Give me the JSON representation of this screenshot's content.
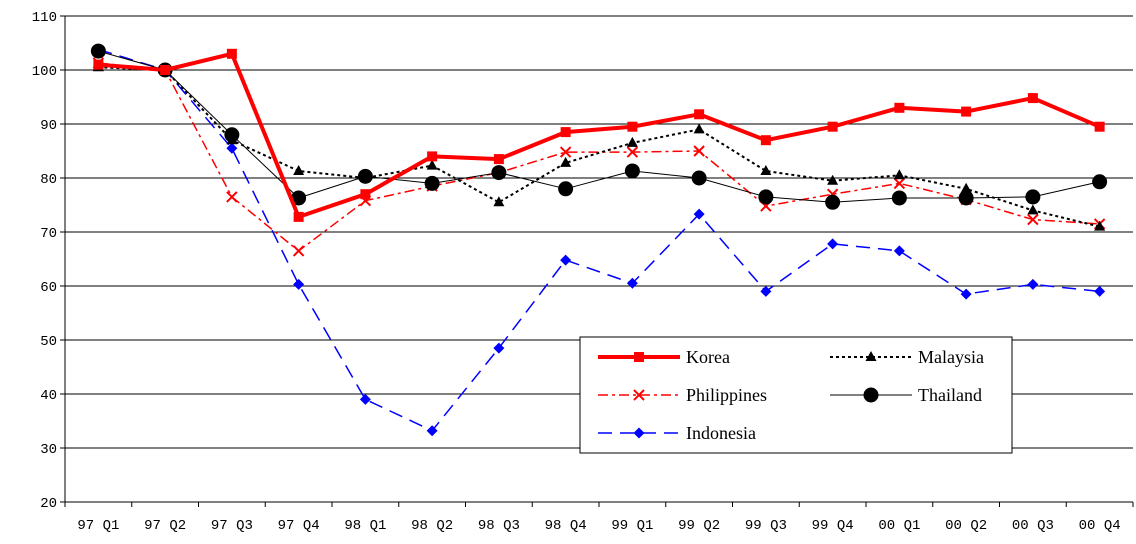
{
  "chart_data": {
    "type": "line",
    "title": "",
    "xlabel": "",
    "ylabel": "",
    "ylim": [
      20,
      110
    ],
    "yticks": [
      20,
      30,
      40,
      50,
      60,
      70,
      80,
      90,
      100,
      110
    ],
    "grid": "horizontal",
    "legend": "lower-right",
    "categories": [
      "97 Q1",
      "97 Q2",
      "97 Q3",
      "97 Q4",
      "98 Q1",
      "98 Q2",
      "98 Q3",
      "98 Q4",
      "99 Q1",
      "99 Q2",
      "99 Q3",
      "99 Q4",
      "00 Q1",
      "00 Q2",
      "00 Q3",
      "00 Q4"
    ],
    "series": [
      {
        "name": "Korea",
        "color": "#ff0000",
        "style": "solid-thick",
        "marker": "square",
        "values": [
          101.0,
          100.0,
          103.0,
          72.8,
          77.0,
          84.0,
          83.5,
          88.5,
          89.5,
          91.8,
          87.0,
          89.5,
          93.0,
          92.3,
          94.8,
          89.5
        ]
      },
      {
        "name": "Malaysia",
        "color": "#000000",
        "style": "dotted",
        "marker": "triangle",
        "values": [
          100.5,
          100.0,
          87.0,
          81.3,
          80.0,
          82.3,
          75.5,
          82.8,
          86.5,
          89.0,
          81.3,
          79.5,
          80.5,
          78.0,
          74.0,
          71.0
        ]
      },
      {
        "name": "Philippines",
        "color": "#ff0000",
        "style": "dashdot",
        "marker": "x",
        "values": [
          101.3,
          100.0,
          76.5,
          66.5,
          75.8,
          78.5,
          81.0,
          84.8,
          84.8,
          85.0,
          74.8,
          77.0,
          79.0,
          76.0,
          72.3,
          71.5
        ]
      },
      {
        "name": "Thailand",
        "color": "#000000",
        "style": "solid-thin",
        "marker": "circle",
        "values": [
          103.5,
          100.0,
          88.0,
          76.3,
          80.3,
          79.0,
          81.0,
          78.0,
          81.3,
          80.0,
          76.5,
          75.5,
          76.3,
          76.3,
          76.5,
          79.3
        ]
      },
      {
        "name": "Indonesia",
        "color": "#0000ff",
        "style": "dashed",
        "marker": "diamond",
        "values": [
          103.8,
          100.0,
          85.5,
          60.3,
          39.0,
          33.2,
          48.5,
          64.8,
          60.5,
          73.3,
          59.0,
          67.8,
          66.5,
          58.5,
          60.3,
          59.0
        ]
      }
    ]
  }
}
